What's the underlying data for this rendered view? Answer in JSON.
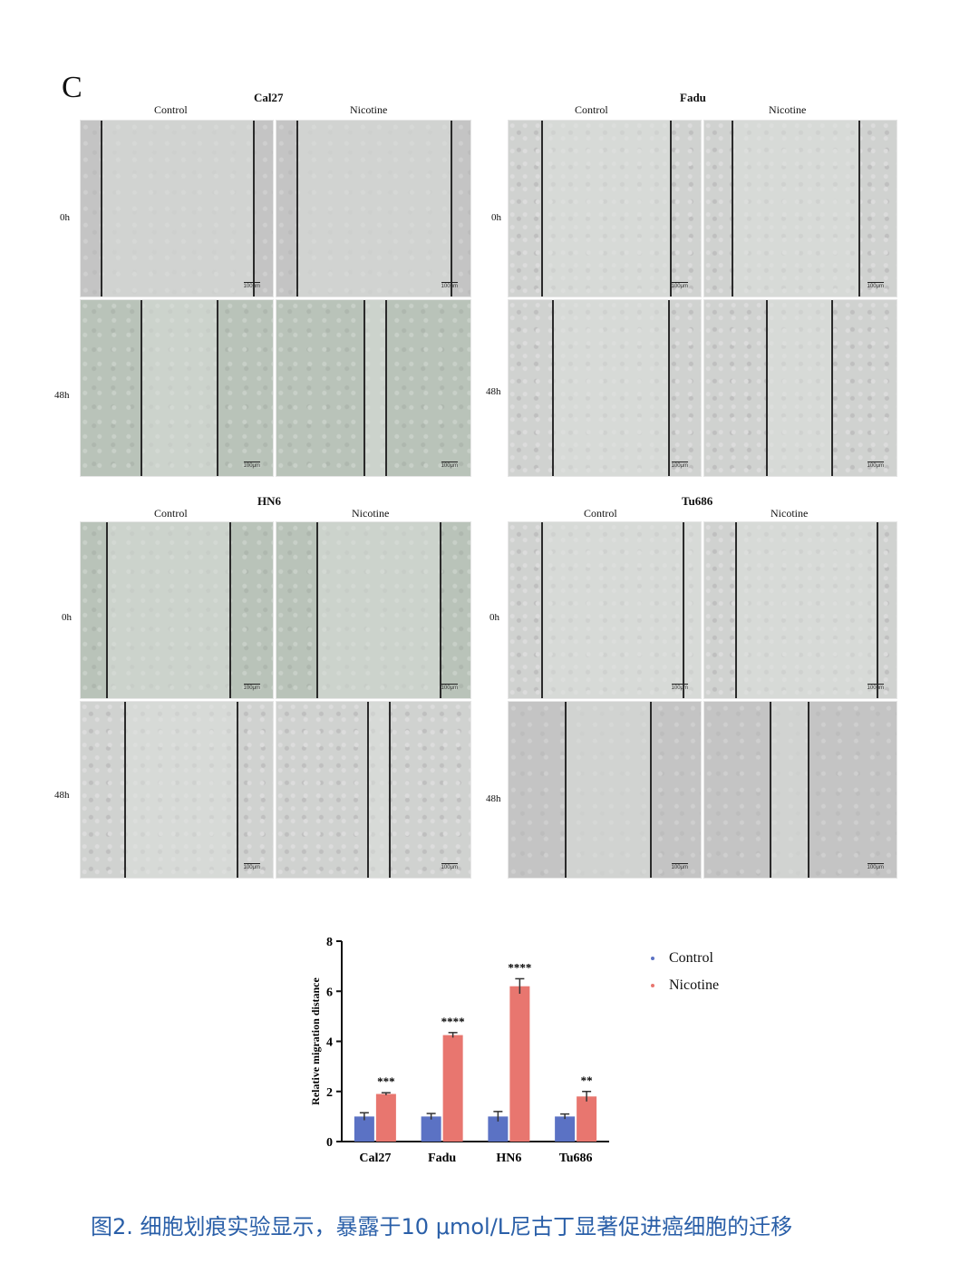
{
  "panel_letter": "C",
  "groups": [
    {
      "title": "Cal27",
      "control_label": "Control",
      "nicotine_label": "Nicotine",
      "row_0h": "0h",
      "row_48h": "48h",
      "scale_label": "100μm"
    },
    {
      "title": "Fadu",
      "control_label": "Control",
      "nicotine_label": "Nicotine",
      "row_0h": "0h",
      "row_48h": "48h",
      "scale_label": "100μm"
    },
    {
      "title": "HN6",
      "control_label": "Control",
      "nicotine_label": "Nicotine",
      "row_0h": "0h",
      "row_48h": "48h",
      "scale_label": "100μm"
    },
    {
      "title": "Tu686",
      "control_label": "Control",
      "nicotine_label": "Nicotine",
      "row_0h": "0h",
      "row_48h": "48h",
      "scale_label": "100μm"
    }
  ],
  "chart_data": {
    "type": "bar",
    "categories": [
      "Cal27",
      "Fadu",
      "HN6",
      "Tu686"
    ],
    "series": [
      {
        "name": "Control",
        "values": [
          1.0,
          1.0,
          1.0,
          1.0
        ],
        "errors": [
          0.15,
          0.12,
          0.2,
          0.1
        ],
        "color": "#5b72c4"
      },
      {
        "name": "Nicotine",
        "values": [
          1.9,
          4.25,
          6.2,
          1.8
        ],
        "errors": [
          0.05,
          0.1,
          0.3,
          0.2
        ],
        "color": "#e8766f"
      }
    ],
    "significance": [
      "***",
      "****",
      "****",
      "**"
    ],
    "ylabel": "Relative migration distance",
    "xlabel": "",
    "ylim": [
      0,
      8
    ],
    "yticks": [
      0,
      2,
      4,
      6,
      8
    ],
    "legend_position": "right"
  },
  "caption": "图2. 细胞划痕实验显示，暴露于10 μmol/L尼古丁显著促进癌细胞的迁移"
}
